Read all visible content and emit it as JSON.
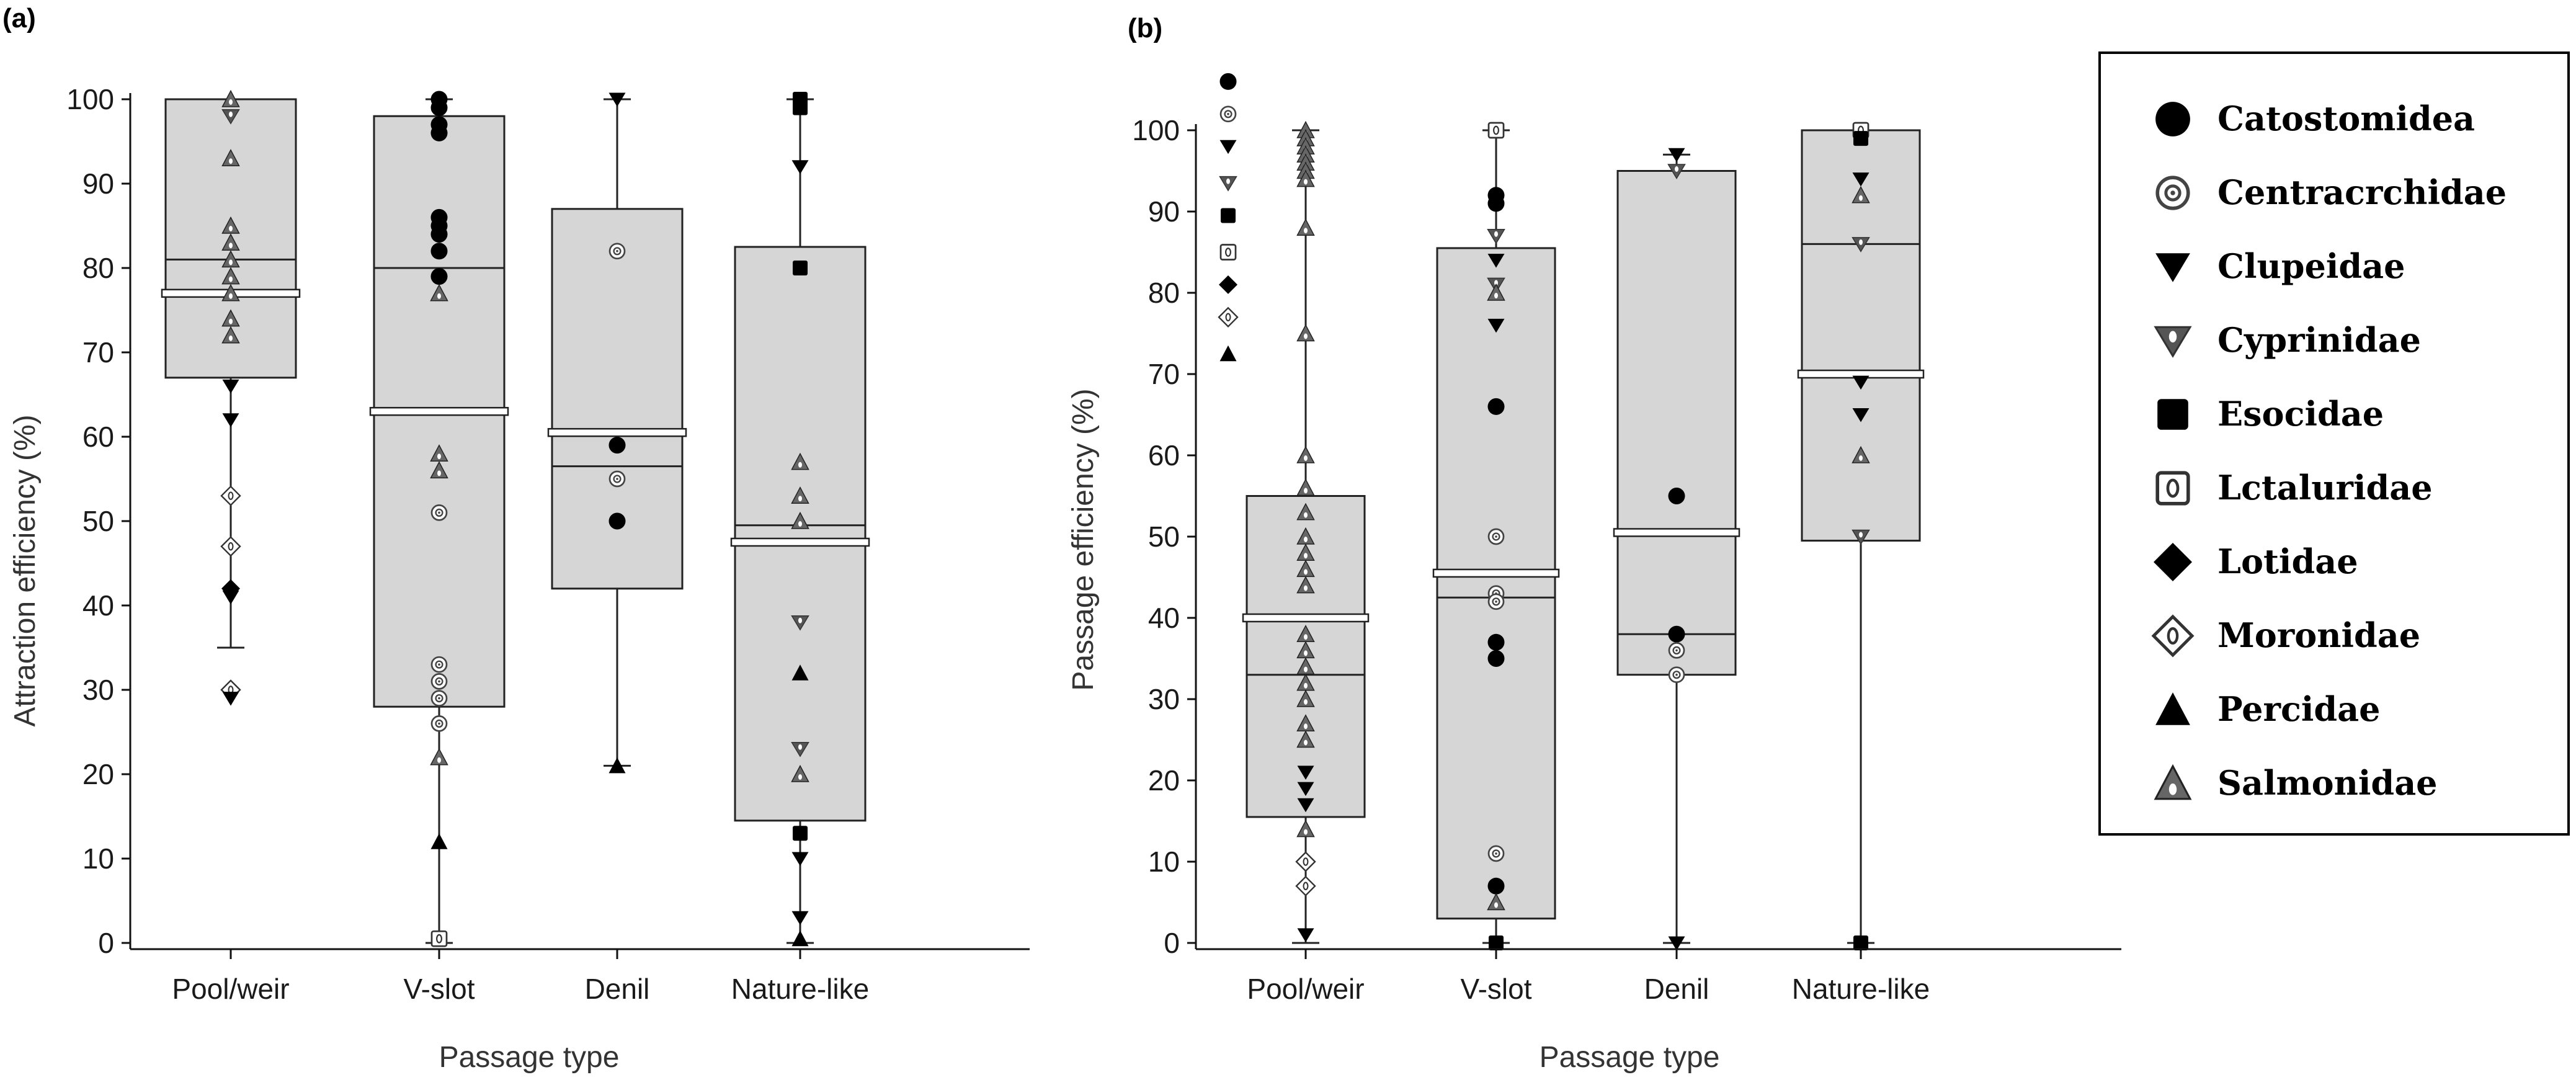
{
  "legend": {
    "items": [
      {
        "key": "cat",
        "label": "Catostomidea"
      },
      {
        "key": "cen",
        "label": "Centracrchidae"
      },
      {
        "key": "clu",
        "label": "Clupeidae"
      },
      {
        "key": "cyp",
        "label": "Cyprinidae"
      },
      {
        "key": "eso",
        "label": "Esocidae"
      },
      {
        "key": "ict",
        "label": "Lctaluridae"
      },
      {
        "key": "lot",
        "label": "Lotidae"
      },
      {
        "key": "mor",
        "label": "Moronidae"
      },
      {
        "key": "per",
        "label": "Percidae"
      },
      {
        "key": "sal",
        "label": "Salmonidae"
      }
    ]
  },
  "chart_data": [
    {
      "panel_label": "(a)",
      "type": "box",
      "xlabel": "Passage type",
      "ylabel": "Attraction efficiency (%)",
      "ylim": [
        0,
        100
      ],
      "yticks": [
        0,
        10,
        20,
        30,
        40,
        50,
        60,
        70,
        80,
        90,
        100
      ],
      "categories": [
        "Pool/weir",
        "V-slot",
        "Denil",
        "Nature-like"
      ],
      "boxes": [
        {
          "q1": 67,
          "median": 81,
          "q3": 100,
          "mean": 77,
          "whisker_low": 35,
          "whisker_high": 100
        },
        {
          "q1": 28,
          "median": 80,
          "q3": 98,
          "mean": 63,
          "whisker_low": 0,
          "whisker_high": 100
        },
        {
          "q1": 42,
          "median": 56.5,
          "q3": 87,
          "mean": 60.5,
          "whisker_low": 21,
          "whisker_high": 100
        },
        {
          "q1": 14.5,
          "median": 49.5,
          "q3": 82.5,
          "mean": 47.5,
          "whisker_low": 0,
          "whisker_high": 100
        }
      ],
      "points": [
        [
          {
            "y": 100,
            "sp": "sal"
          },
          {
            "y": 98,
            "sp": "cyp"
          },
          {
            "y": 93,
            "sp": "sal"
          },
          {
            "y": 85,
            "sp": "sal"
          },
          {
            "y": 83,
            "sp": "sal"
          },
          {
            "y": 81,
            "sp": "sal"
          },
          {
            "y": 79,
            "sp": "sal"
          },
          {
            "y": 77,
            "sp": "sal"
          },
          {
            "y": 74,
            "sp": "sal"
          },
          {
            "y": 72,
            "sp": "sal"
          },
          {
            "y": 66,
            "sp": "clu"
          },
          {
            "y": 62,
            "sp": "clu"
          },
          {
            "y": 53,
            "sp": "mor"
          },
          {
            "y": 47,
            "sp": "mor"
          },
          {
            "y": 42,
            "sp": "lot"
          },
          {
            "y": 41,
            "sp": "clu"
          },
          {
            "y": 30,
            "sp": "mor"
          },
          {
            "y": 29,
            "sp": "clu"
          }
        ],
        [
          {
            "y": 100,
            "sp": "cat"
          },
          {
            "y": 99,
            "sp": "cat"
          },
          {
            "y": 97,
            "sp": "cat"
          },
          {
            "y": 96,
            "sp": "cat"
          },
          {
            "y": 86,
            "sp": "cat"
          },
          {
            "y": 85,
            "sp": "cat"
          },
          {
            "y": 84,
            "sp": "cat"
          },
          {
            "y": 82,
            "sp": "cat"
          },
          {
            "y": 79,
            "sp": "cat"
          },
          {
            "y": 77,
            "sp": "sal"
          },
          {
            "y": 58,
            "sp": "sal"
          },
          {
            "y": 56,
            "sp": "sal"
          },
          {
            "y": 51,
            "sp": "cen"
          },
          {
            "y": 33,
            "sp": "cen"
          },
          {
            "y": 31,
            "sp": "cen"
          },
          {
            "y": 29,
            "sp": "cen"
          },
          {
            "y": 26,
            "sp": "cen"
          },
          {
            "y": 22,
            "sp": "sal"
          },
          {
            "y": 12,
            "sp": "per"
          },
          {
            "y": 0.5,
            "sp": "ict"
          }
        ],
        [
          {
            "y": 100,
            "sp": "clu"
          },
          {
            "y": 82,
            "sp": "cen"
          },
          {
            "y": 59,
            "sp": "cat"
          },
          {
            "y": 55,
            "sp": "cen"
          },
          {
            "y": 50,
            "sp": "cat"
          },
          {
            "y": 21,
            "sp": "per"
          }
        ],
        [
          {
            "y": 100,
            "sp": "eso"
          },
          {
            "y": 99,
            "sp": "eso"
          },
          {
            "y": 92,
            "sp": "clu"
          },
          {
            "y": 80,
            "sp": "eso"
          },
          {
            "y": 57,
            "sp": "sal"
          },
          {
            "y": 53,
            "sp": "sal"
          },
          {
            "y": 50,
            "sp": "sal"
          },
          {
            "y": 38,
            "sp": "cyp"
          },
          {
            "y": 32,
            "sp": "per"
          },
          {
            "y": 23,
            "sp": "cyp"
          },
          {
            "y": 20,
            "sp": "sal"
          },
          {
            "y": 13,
            "sp": "eso"
          },
          {
            "y": 10,
            "sp": "clu"
          },
          {
            "y": 3,
            "sp": "clu"
          },
          {
            "y": 0.5,
            "sp": "per"
          }
        ]
      ]
    },
    {
      "panel_label": "(b)",
      "type": "box",
      "xlabel": "Passage type",
      "ylabel": "Passage efficiency (%)",
      "ylim": [
        0,
        100
      ],
      "yticks": [
        0,
        10,
        20,
        30,
        40,
        50,
        60,
        70,
        80,
        90,
        100
      ],
      "categories": [
        "Pool/weir",
        "V-slot",
        "Denil",
        "Nature-like"
      ],
      "boxes": [
        {
          "q1": 15.5,
          "median": 33,
          "q3": 55,
          "mean": 40,
          "whisker_low": 0,
          "whisker_high": 100
        },
        {
          "q1": 3,
          "median": 42.5,
          "q3": 85.5,
          "mean": 45.5,
          "whisker_low": 0,
          "whisker_high": 100
        },
        {
          "q1": 33,
          "median": 38,
          "q3": 95,
          "mean": 50.5,
          "whisker_low": 0,
          "whisker_high": 97
        },
        {
          "q1": 49.5,
          "median": 86,
          "q3": 100,
          "mean": 70,
          "whisker_low": 0,
          "whisker_high": 100
        }
      ],
      "points": [
        [
          {
            "y": 100,
            "sp": "sal"
          },
          {
            "y": 99,
            "sp": "sal"
          },
          {
            "y": 98,
            "sp": "sal"
          },
          {
            "y": 97,
            "sp": "sal"
          },
          {
            "y": 96,
            "sp": "sal"
          },
          {
            "y": 95,
            "sp": "sal"
          },
          {
            "y": 94,
            "sp": "sal"
          },
          {
            "y": 88,
            "sp": "sal"
          },
          {
            "y": 75,
            "sp": "sal"
          },
          {
            "y": 60,
            "sp": "sal"
          },
          {
            "y": 56,
            "sp": "sal"
          },
          {
            "y": 53,
            "sp": "sal"
          },
          {
            "y": 50,
            "sp": "sal"
          },
          {
            "y": 48,
            "sp": "sal"
          },
          {
            "y": 46,
            "sp": "sal"
          },
          {
            "y": 44,
            "sp": "sal"
          },
          {
            "y": 38,
            "sp": "sal"
          },
          {
            "y": 36,
            "sp": "sal"
          },
          {
            "y": 34,
            "sp": "sal"
          },
          {
            "y": 32,
            "sp": "sal"
          },
          {
            "y": 30,
            "sp": "sal"
          },
          {
            "y": 27,
            "sp": "sal"
          },
          {
            "y": 25,
            "sp": "sal"
          },
          {
            "y": 21,
            "sp": "clu"
          },
          {
            "y": 19,
            "sp": "clu"
          },
          {
            "y": 17,
            "sp": "clu"
          },
          {
            "y": 14,
            "sp": "sal"
          },
          {
            "y": 10,
            "sp": "mor"
          },
          {
            "y": 7,
            "sp": "mor"
          },
          {
            "y": 1,
            "sp": "clu"
          }
        ],
        [
          {
            "y": 100,
            "sp": "ict"
          },
          {
            "y": 92,
            "sp": "cat"
          },
          {
            "y": 91,
            "sp": "cat"
          },
          {
            "y": 87,
            "sp": "cyp"
          },
          {
            "y": 84,
            "sp": "clu"
          },
          {
            "y": 81,
            "sp": "cyp"
          },
          {
            "y": 80,
            "sp": "sal"
          },
          {
            "y": 76,
            "sp": "clu"
          },
          {
            "y": 66,
            "sp": "cat"
          },
          {
            "y": 50,
            "sp": "cen"
          },
          {
            "y": 43,
            "sp": "cen"
          },
          {
            "y": 42,
            "sp": "cen"
          },
          {
            "y": 37,
            "sp": "cat"
          },
          {
            "y": 35,
            "sp": "cat"
          },
          {
            "y": 11,
            "sp": "cen"
          },
          {
            "y": 7,
            "sp": "cat"
          },
          {
            "y": 5,
            "sp": "sal"
          },
          {
            "y": 0,
            "sp": "eso"
          }
        ],
        [
          {
            "y": 97,
            "sp": "clu"
          },
          {
            "y": 95,
            "sp": "cyp"
          },
          {
            "y": 55,
            "sp": "cat"
          },
          {
            "y": 38,
            "sp": "cat"
          },
          {
            "y": 36,
            "sp": "cen"
          },
          {
            "y": 33,
            "sp": "cen"
          },
          {
            "y": 0,
            "sp": "clu"
          }
        ],
        [
          {
            "y": 100,
            "sp": "ict"
          },
          {
            "y": 99,
            "sp": "eso"
          },
          {
            "y": 94,
            "sp": "clu"
          },
          {
            "y": 92,
            "sp": "sal"
          },
          {
            "y": 86,
            "sp": "cyp"
          },
          {
            "y": 69,
            "sp": "clu"
          },
          {
            "y": 65,
            "sp": "clu"
          },
          {
            "y": 60,
            "sp": "sal"
          },
          {
            "y": 50,
            "sp": "cyp"
          },
          {
            "y": 0,
            "sp": "eso"
          }
        ]
      ],
      "side_points": [
        {
          "y": 106,
          "sp": "cat"
        },
        {
          "y": 102,
          "sp": "cen"
        },
        {
          "y": 98,
          "sp": "clu"
        },
        {
          "y": 93.5,
          "sp": "cyp"
        },
        {
          "y": 89.5,
          "sp": "eso"
        },
        {
          "y": 85,
          "sp": "ict"
        },
        {
          "y": 81,
          "sp": "lot"
        },
        {
          "y": 77,
          "sp": "mor"
        },
        {
          "y": 72.5,
          "sp": "per"
        }
      ]
    }
  ]
}
